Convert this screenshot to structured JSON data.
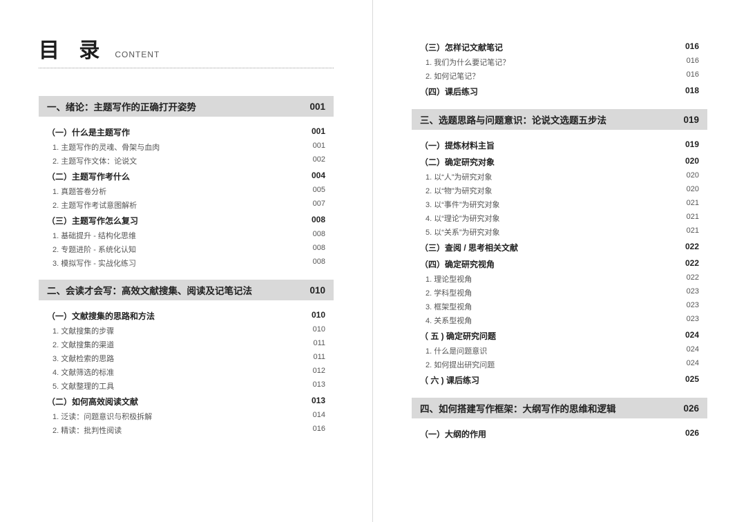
{
  "header": {
    "title_main": "目 录",
    "title_sub": "CONTENT"
  },
  "left": [
    {
      "type": "chapter",
      "label": "一、绪论：主题写作的正确打开姿势",
      "page": "001"
    },
    {
      "type": "section",
      "label": "（一）什么是主题写作",
      "page": "001"
    },
    {
      "type": "item",
      "label": "1. 主题写作的灵魂、骨架与血肉",
      "page": "001"
    },
    {
      "type": "item",
      "label": "2. 主题写作文体：论说文",
      "page": "002"
    },
    {
      "type": "section",
      "label": "（二）主题写作考什么",
      "page": "004"
    },
    {
      "type": "item",
      "label": "1. 真题答卷分析",
      "page": "005"
    },
    {
      "type": "item",
      "label": "2. 主题写作考试意图解析",
      "page": "007"
    },
    {
      "type": "section",
      "label": "（三）主题写作怎么复习",
      "page": "008"
    },
    {
      "type": "item",
      "label": "1. 基础提升 - 结构化思维",
      "page": "008"
    },
    {
      "type": "item",
      "label": "2. 专题进阶 - 系统化认知",
      "page": "008"
    },
    {
      "type": "item",
      "label": "3. 模拟写作 - 实战化练习",
      "page": "008"
    },
    {
      "type": "chapter",
      "label": "二、会读才会写：高效文献搜集、阅读及记笔记法",
      "page": "010"
    },
    {
      "type": "section",
      "label": "（一）文献搜集的思路和方法",
      "page": "010"
    },
    {
      "type": "item",
      "label": "1. 文献搜集的步骤",
      "page": "010"
    },
    {
      "type": "item",
      "label": "2. 文献搜集的渠道",
      "page": "011"
    },
    {
      "type": "item",
      "label": "3. 文献检索的思路",
      "page": "011"
    },
    {
      "type": "item",
      "label": "4. 文献筛选的标准",
      "page": "012"
    },
    {
      "type": "item",
      "label": "5. 文献整理的工具",
      "page": "013"
    },
    {
      "type": "section",
      "label": "（二）如何高效阅读文献",
      "page": "013"
    },
    {
      "type": "item",
      "label": "1. 泛读：问题意识与积极拆解",
      "page": "014"
    },
    {
      "type": "item",
      "label": "2. 精读：批判性阅读",
      "page": "016"
    }
  ],
  "right": [
    {
      "type": "section",
      "label": "（三）怎样记文献笔记",
      "page": "016"
    },
    {
      "type": "item",
      "label": "1. 我们为什么要记笔记？",
      "page": "016"
    },
    {
      "type": "item",
      "label": "2. 如何记笔记？",
      "page": "016"
    },
    {
      "type": "section",
      "label": "（四）课后练习",
      "page": "018"
    },
    {
      "type": "chapter",
      "label": "三、选题思路与问题意识：论说文选题五步法",
      "page": "019"
    },
    {
      "type": "section",
      "label": "（一）提炼材料主旨",
      "page": "019"
    },
    {
      "type": "section",
      "label": "（二）确定研究对象",
      "page": "020"
    },
    {
      "type": "item",
      "label": "1. 以“人”为研究对象",
      "page": "020"
    },
    {
      "type": "item",
      "label": "2. 以“物”为研究对象",
      "page": "020"
    },
    {
      "type": "item",
      "label": "3. 以“事件”为研究对象",
      "page": "021"
    },
    {
      "type": "item",
      "label": "4. 以“理论”为研究对象",
      "page": "021"
    },
    {
      "type": "item",
      "label": "5. 以“关系”为研究对象",
      "page": "021"
    },
    {
      "type": "section",
      "label": "（三）查阅 / 思考相关文献",
      "page": "022"
    },
    {
      "type": "section",
      "label": "（四）确定研究视角",
      "page": "022"
    },
    {
      "type": "item",
      "label": "1. 理论型视角",
      "page": "022"
    },
    {
      "type": "item",
      "label": "2. 学科型视角",
      "page": "023"
    },
    {
      "type": "item",
      "label": "3. 框架型视角",
      "page": "023"
    },
    {
      "type": "item",
      "label": "4. 关系型视角",
      "page": "023"
    },
    {
      "type": "section",
      "label": "（ 五 ) 确定研究问题",
      "page": "024"
    },
    {
      "type": "item",
      "label": "1. 什么是问题意识",
      "page": "024"
    },
    {
      "type": "item",
      "label": "2. 如何提出研究问题",
      "page": "024"
    },
    {
      "type": "section",
      "label": "（ 六 ) 课后练习",
      "page": "025"
    },
    {
      "type": "chapter",
      "label": "四、如何搭建写作框架：大纲写作的思维和逻辑",
      "page": "026"
    },
    {
      "type": "section",
      "label": "（一）大纲的作用",
      "page": "026"
    }
  ],
  "colors": {
    "chapter_bg": "#d9d9d9",
    "text_main": "#222222",
    "text_sub": "#555555",
    "divider": "#d8d8d8"
  }
}
